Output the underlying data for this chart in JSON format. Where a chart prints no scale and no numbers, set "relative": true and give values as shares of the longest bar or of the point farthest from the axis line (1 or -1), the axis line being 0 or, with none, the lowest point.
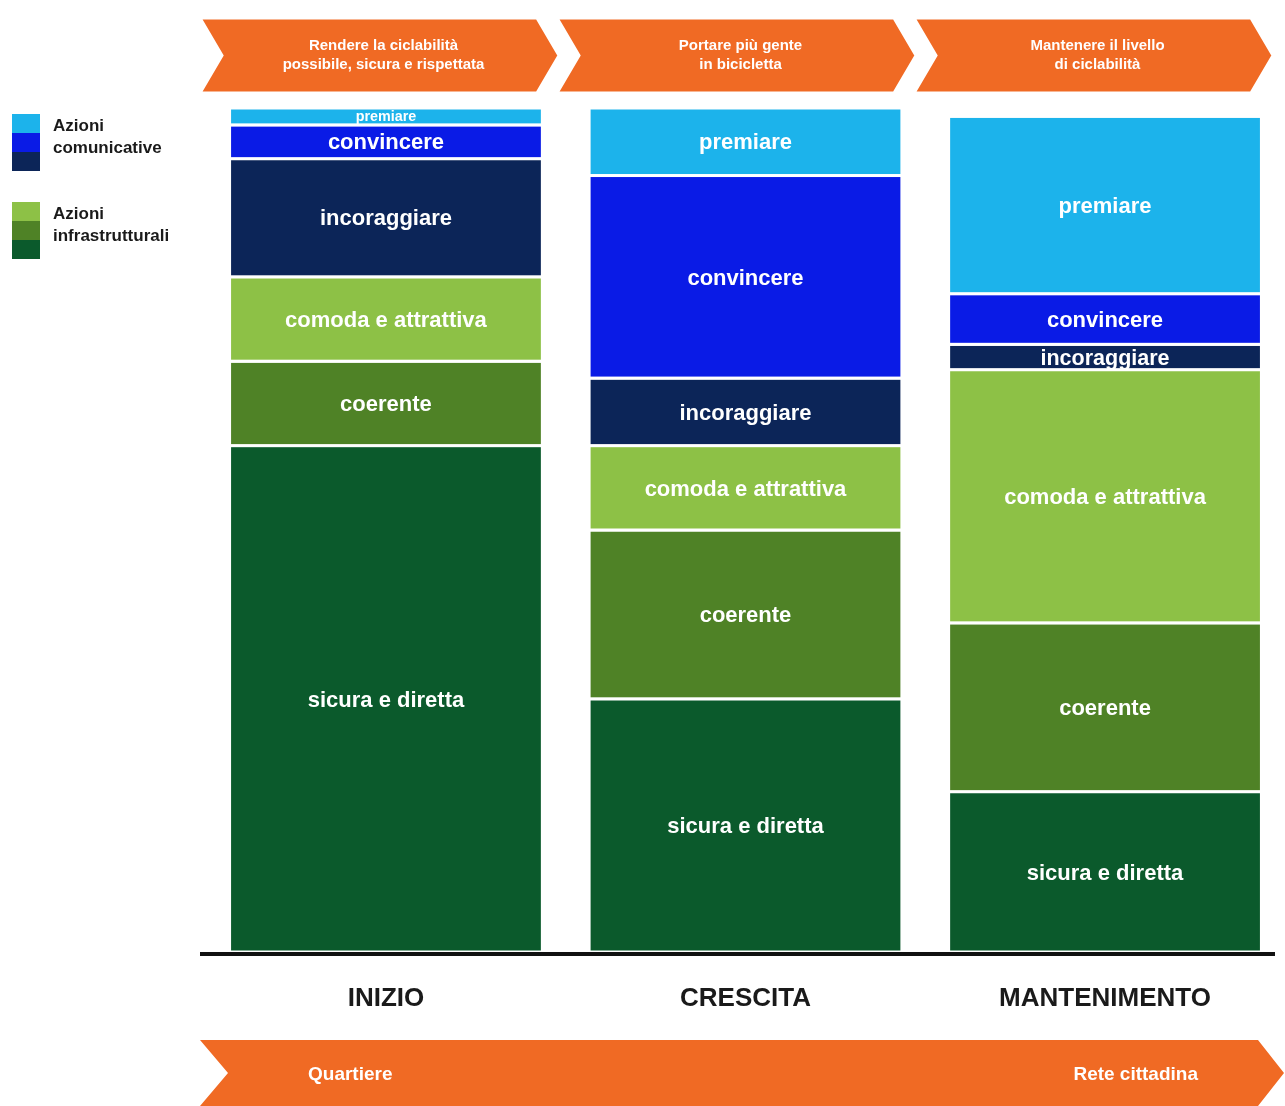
{
  "chart_data": {
    "type": "bar",
    "stacked": true,
    "relative": true,
    "legend": "left",
    "categories": [
      "INIZIO",
      "CRESCITA",
      "MANTENIMENTO"
    ],
    "series": [
      {
        "name": "sicura e diretta",
        "color": "#0b5a2c",
        "values": [
          0.6,
          0.3,
          0.19
        ]
      },
      {
        "name": "coerente",
        "color": "#4f8226",
        "values": [
          0.1,
          0.2,
          0.2
        ]
      },
      {
        "name": "comoda e attrattiva",
        "color": "#8dc146",
        "values": [
          0.1,
          0.1,
          0.3
        ]
      },
      {
        "name": "incoraggiare",
        "color": "#0c2558",
        "values": [
          0.14,
          0.08,
          0.03
        ]
      },
      {
        "name": "convincere",
        "color": "#0a1be6",
        "values": [
          0.04,
          0.24,
          0.06
        ]
      },
      {
        "name": "premiare",
        "color": "#1cb3eb",
        "values": [
          0.02,
          0.08,
          0.21
        ]
      }
    ],
    "annotations": [
      "Azioni\ncomunicative",
      "Azioni\ninfrastrutturali",
      "Rendere la ciclabilità\npossibile, sicura e rispettata",
      "Portare più gente\nin bicicletta",
      "Mantenere il livello\ndi ciclabilità",
      "Quartiere",
      "Rete cittadina"
    ]
  }
}
